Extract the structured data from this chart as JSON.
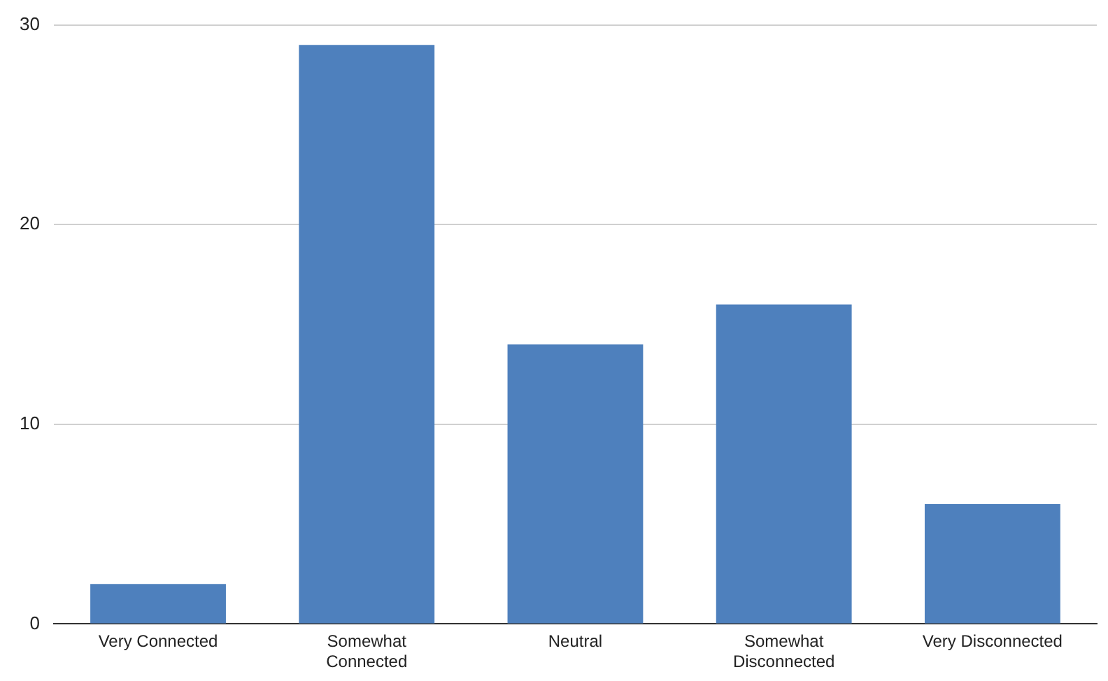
{
  "chart_data": {
    "type": "bar",
    "categories": [
      "Very Connected",
      "Somewhat Connected",
      "Neutral",
      "Somewhat Disconnected",
      "Very Disconnected"
    ],
    "values": [
      2,
      29,
      14,
      16,
      6
    ],
    "color": "#4e80bd",
    "ylim": [
      0,
      30
    ],
    "yticks": [
      0,
      10,
      20,
      30
    ],
    "grid": "y"
  }
}
